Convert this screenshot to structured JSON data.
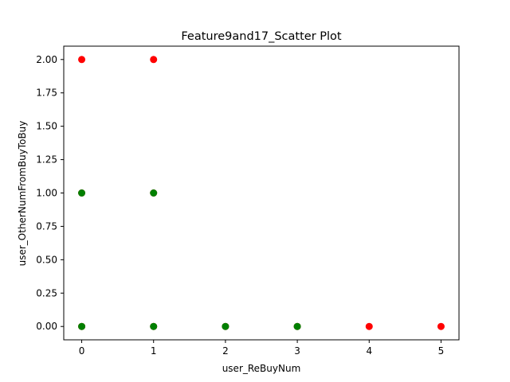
{
  "chart_data": {
    "type": "scatter",
    "title": "Feature9and17_Scatter Plot",
    "xlabel": "user_ReBuyNum",
    "ylabel": "user_OtherNumFromBuyToBuy",
    "xlim": [
      -0.25,
      5.25
    ],
    "ylim": [
      -0.1,
      2.1
    ],
    "xticks": [
      0,
      1,
      2,
      3,
      4,
      5
    ],
    "xtick_labels": [
      "0",
      "1",
      "2",
      "3",
      "4",
      "5"
    ],
    "yticks": [
      0,
      0.25,
      0.5,
      0.75,
      1.0,
      1.25,
      1.5,
      1.75,
      2.0
    ],
    "ytick_labels": [
      "0.00",
      "0.25",
      "0.50",
      "0.75",
      "1.00",
      "1.25",
      "1.50",
      "1.75",
      "2.00"
    ],
    "grid": false,
    "legend": "none",
    "series": [
      {
        "color": "#ff0000",
        "points": [
          [
            0,
            2
          ],
          [
            1,
            2
          ],
          [
            0,
            1
          ],
          [
            1,
            1
          ],
          [
            0,
            0
          ],
          [
            1,
            0
          ],
          [
            2,
            0
          ],
          [
            3,
            0
          ],
          [
            4,
            0
          ],
          [
            5,
            0
          ]
        ]
      },
      {
        "color": "#008000",
        "points": [
          [
            0,
            1
          ],
          [
            1,
            1
          ],
          [
            0,
            0
          ],
          [
            1,
            0
          ],
          [
            2,
            0
          ],
          [
            3,
            0
          ]
        ]
      }
    ]
  }
}
